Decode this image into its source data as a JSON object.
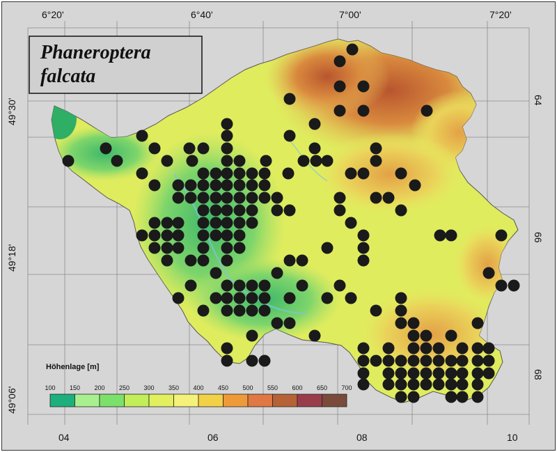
{
  "title_line1": "Phaneroptera",
  "title_line2": "falcata",
  "top_labels": [
    "6°20'",
    "6°40'",
    "7°00'",
    "7°20'"
  ],
  "bottom_labels": [
    "04",
    "06",
    "08",
    "10"
  ],
  "left_labels": [
    "49°30'",
    "49°18'",
    "49°06'"
  ],
  "right_labels": [
    "64",
    "66",
    "68"
  ],
  "legend": {
    "title": "Höhenlage [m]",
    "values": [
      "100",
      "150",
      "200",
      "250",
      "300",
      "350",
      "400",
      "450",
      "500",
      "550",
      "600",
      "650",
      "700"
    ],
    "colors": [
      "#1db07c",
      "#a8f08f",
      "#7ce16b",
      "#c2ee5a",
      "#e2f05f",
      "#f4f27a",
      "#f2d148",
      "#ef9a3a",
      "#e07843",
      "#b66236",
      "#9a3d4b",
      "#7a4a3b",
      "#4a2e3e"
    ]
  },
  "colors": {
    "frame_bg": "#d6d6d6",
    "dot": "#1a1a1a",
    "terrain_low": "#4cc570",
    "terrain_mid": "#d9ec5c",
    "terrain_high": "#c97a3c"
  },
  "dots": [
    [
      506,
      71
    ],
    [
      488,
      88
    ],
    [
      488,
      124
    ],
    [
      522,
      124
    ],
    [
      416,
      142
    ],
    [
      488,
      159
    ],
    [
      522,
      159
    ],
    [
      613,
      159
    ],
    [
      326,
      178
    ],
    [
      452,
      178
    ],
    [
      204,
      195
    ],
    [
      416,
      195
    ],
    [
      326,
      195
    ],
    [
      152,
      213
    ],
    [
      222,
      213
    ],
    [
      272,
      213
    ],
    [
      292,
      213
    ],
    [
      326,
      213
    ],
    [
      452,
      213
    ],
    [
      540,
      213
    ],
    [
      98,
      231
    ],
    [
      168,
      231
    ],
    [
      240,
      231
    ],
    [
      276,
      231
    ],
    [
      326,
      231
    ],
    [
      344,
      231
    ],
    [
      382,
      231
    ],
    [
      436,
      231
    ],
    [
      454,
      231
    ],
    [
      470,
      231
    ],
    [
      540,
      231
    ],
    [
      204,
      249
    ],
    [
      292,
      249
    ],
    [
      310,
      249
    ],
    [
      326,
      249
    ],
    [
      344,
      249
    ],
    [
      362,
      249
    ],
    [
      380,
      249
    ],
    [
      414,
      249
    ],
    [
      504,
      249
    ],
    [
      522,
      249
    ],
    [
      576,
      249
    ],
    [
      222,
      266
    ],
    [
      256,
      266
    ],
    [
      274,
      266
    ],
    [
      292,
      266
    ],
    [
      310,
      266
    ],
    [
      326,
      266
    ],
    [
      344,
      266
    ],
    [
      362,
      266
    ],
    [
      380,
      266
    ],
    [
      596,
      266
    ],
    [
      256,
      284
    ],
    [
      274,
      284
    ],
    [
      292,
      284
    ],
    [
      310,
      284
    ],
    [
      326,
      284
    ],
    [
      344,
      284
    ],
    [
      362,
      284
    ],
    [
      380,
      284
    ],
    [
      398,
      284
    ],
    [
      488,
      284
    ],
    [
      540,
      284
    ],
    [
      558,
      284
    ],
    [
      292,
      302
    ],
    [
      310,
      302
    ],
    [
      326,
      302
    ],
    [
      344,
      302
    ],
    [
      362,
      302
    ],
    [
      398,
      302
    ],
    [
      416,
      302
    ],
    [
      488,
      302
    ],
    [
      576,
      302
    ],
    [
      222,
      320
    ],
    [
      240,
      320
    ],
    [
      256,
      320
    ],
    [
      292,
      320
    ],
    [
      310,
      320
    ],
    [
      326,
      320
    ],
    [
      344,
      320
    ],
    [
      362,
      320
    ],
    [
      504,
      320
    ],
    [
      204,
      338
    ],
    [
      222,
      338
    ],
    [
      240,
      338
    ],
    [
      256,
      338
    ],
    [
      292,
      338
    ],
    [
      310,
      338
    ],
    [
      326,
      338
    ],
    [
      344,
      338
    ],
    [
      522,
      338
    ],
    [
      632,
      338
    ],
    [
      648,
      338
    ],
    [
      720,
      338
    ],
    [
      222,
      356
    ],
    [
      240,
      356
    ],
    [
      256,
      356
    ],
    [
      292,
      356
    ],
    [
      326,
      356
    ],
    [
      344,
      356
    ],
    [
      470,
      356
    ],
    [
      522,
      356
    ],
    [
      240,
      374
    ],
    [
      274,
      374
    ],
    [
      292,
      374
    ],
    [
      326,
      374
    ],
    [
      416,
      374
    ],
    [
      434,
      374
    ],
    [
      522,
      374
    ],
    [
      310,
      392
    ],
    [
      398,
      392
    ],
    [
      702,
      392
    ],
    [
      274,
      410
    ],
    [
      326,
      410
    ],
    [
      344,
      410
    ],
    [
      362,
      410
    ],
    [
      380,
      410
    ],
    [
      434,
      410
    ],
    [
      488,
      410
    ],
    [
      720,
      410
    ],
    [
      738,
      410
    ],
    [
      256,
      428
    ],
    [
      310,
      428
    ],
    [
      326,
      428
    ],
    [
      344,
      428
    ],
    [
      362,
      428
    ],
    [
      380,
      428
    ],
    [
      416,
      428
    ],
    [
      470,
      428
    ],
    [
      504,
      428
    ],
    [
      576,
      428
    ],
    [
      292,
      446
    ],
    [
      326,
      446
    ],
    [
      344,
      446
    ],
    [
      362,
      446
    ],
    [
      380,
      446
    ],
    [
      540,
      446
    ],
    [
      576,
      446
    ],
    [
      398,
      464
    ],
    [
      416,
      464
    ],
    [
      576,
      464
    ],
    [
      594,
      464
    ],
    [
      686,
      464
    ],
    [
      362,
      482
    ],
    [
      452,
      482
    ],
    [
      594,
      482
    ],
    [
      612,
      482
    ],
    [
      648,
      482
    ],
    [
      326,
      500
    ],
    [
      522,
      500
    ],
    [
      558,
      500
    ],
    [
      594,
      500
    ],
    [
      612,
      500
    ],
    [
      630,
      500
    ],
    [
      664,
      500
    ],
    [
      686,
      500
    ],
    [
      702,
      500
    ],
    [
      326,
      518
    ],
    [
      362,
      518
    ],
    [
      380,
      518
    ],
    [
      522,
      518
    ],
    [
      540,
      518
    ],
    [
      558,
      518
    ],
    [
      576,
      518
    ],
    [
      594,
      518
    ],
    [
      612,
      518
    ],
    [
      630,
      518
    ],
    [
      648,
      518
    ],
    [
      664,
      518
    ],
    [
      686,
      518
    ],
    [
      702,
      518
    ],
    [
      522,
      536
    ],
    [
      558,
      536
    ],
    [
      576,
      536
    ],
    [
      594,
      536
    ],
    [
      612,
      536
    ],
    [
      630,
      536
    ],
    [
      648,
      536
    ],
    [
      664,
      536
    ],
    [
      686,
      536
    ],
    [
      702,
      536
    ],
    [
      522,
      552
    ],
    [
      558,
      552
    ],
    [
      576,
      552
    ],
    [
      594,
      552
    ],
    [
      612,
      552
    ],
    [
      630,
      552
    ],
    [
      648,
      552
    ],
    [
      664,
      552
    ],
    [
      686,
      552
    ],
    [
      576,
      570
    ],
    [
      594,
      570
    ],
    [
      648,
      570
    ],
    [
      664,
      570
    ],
    [
      686,
      570
    ]
  ]
}
